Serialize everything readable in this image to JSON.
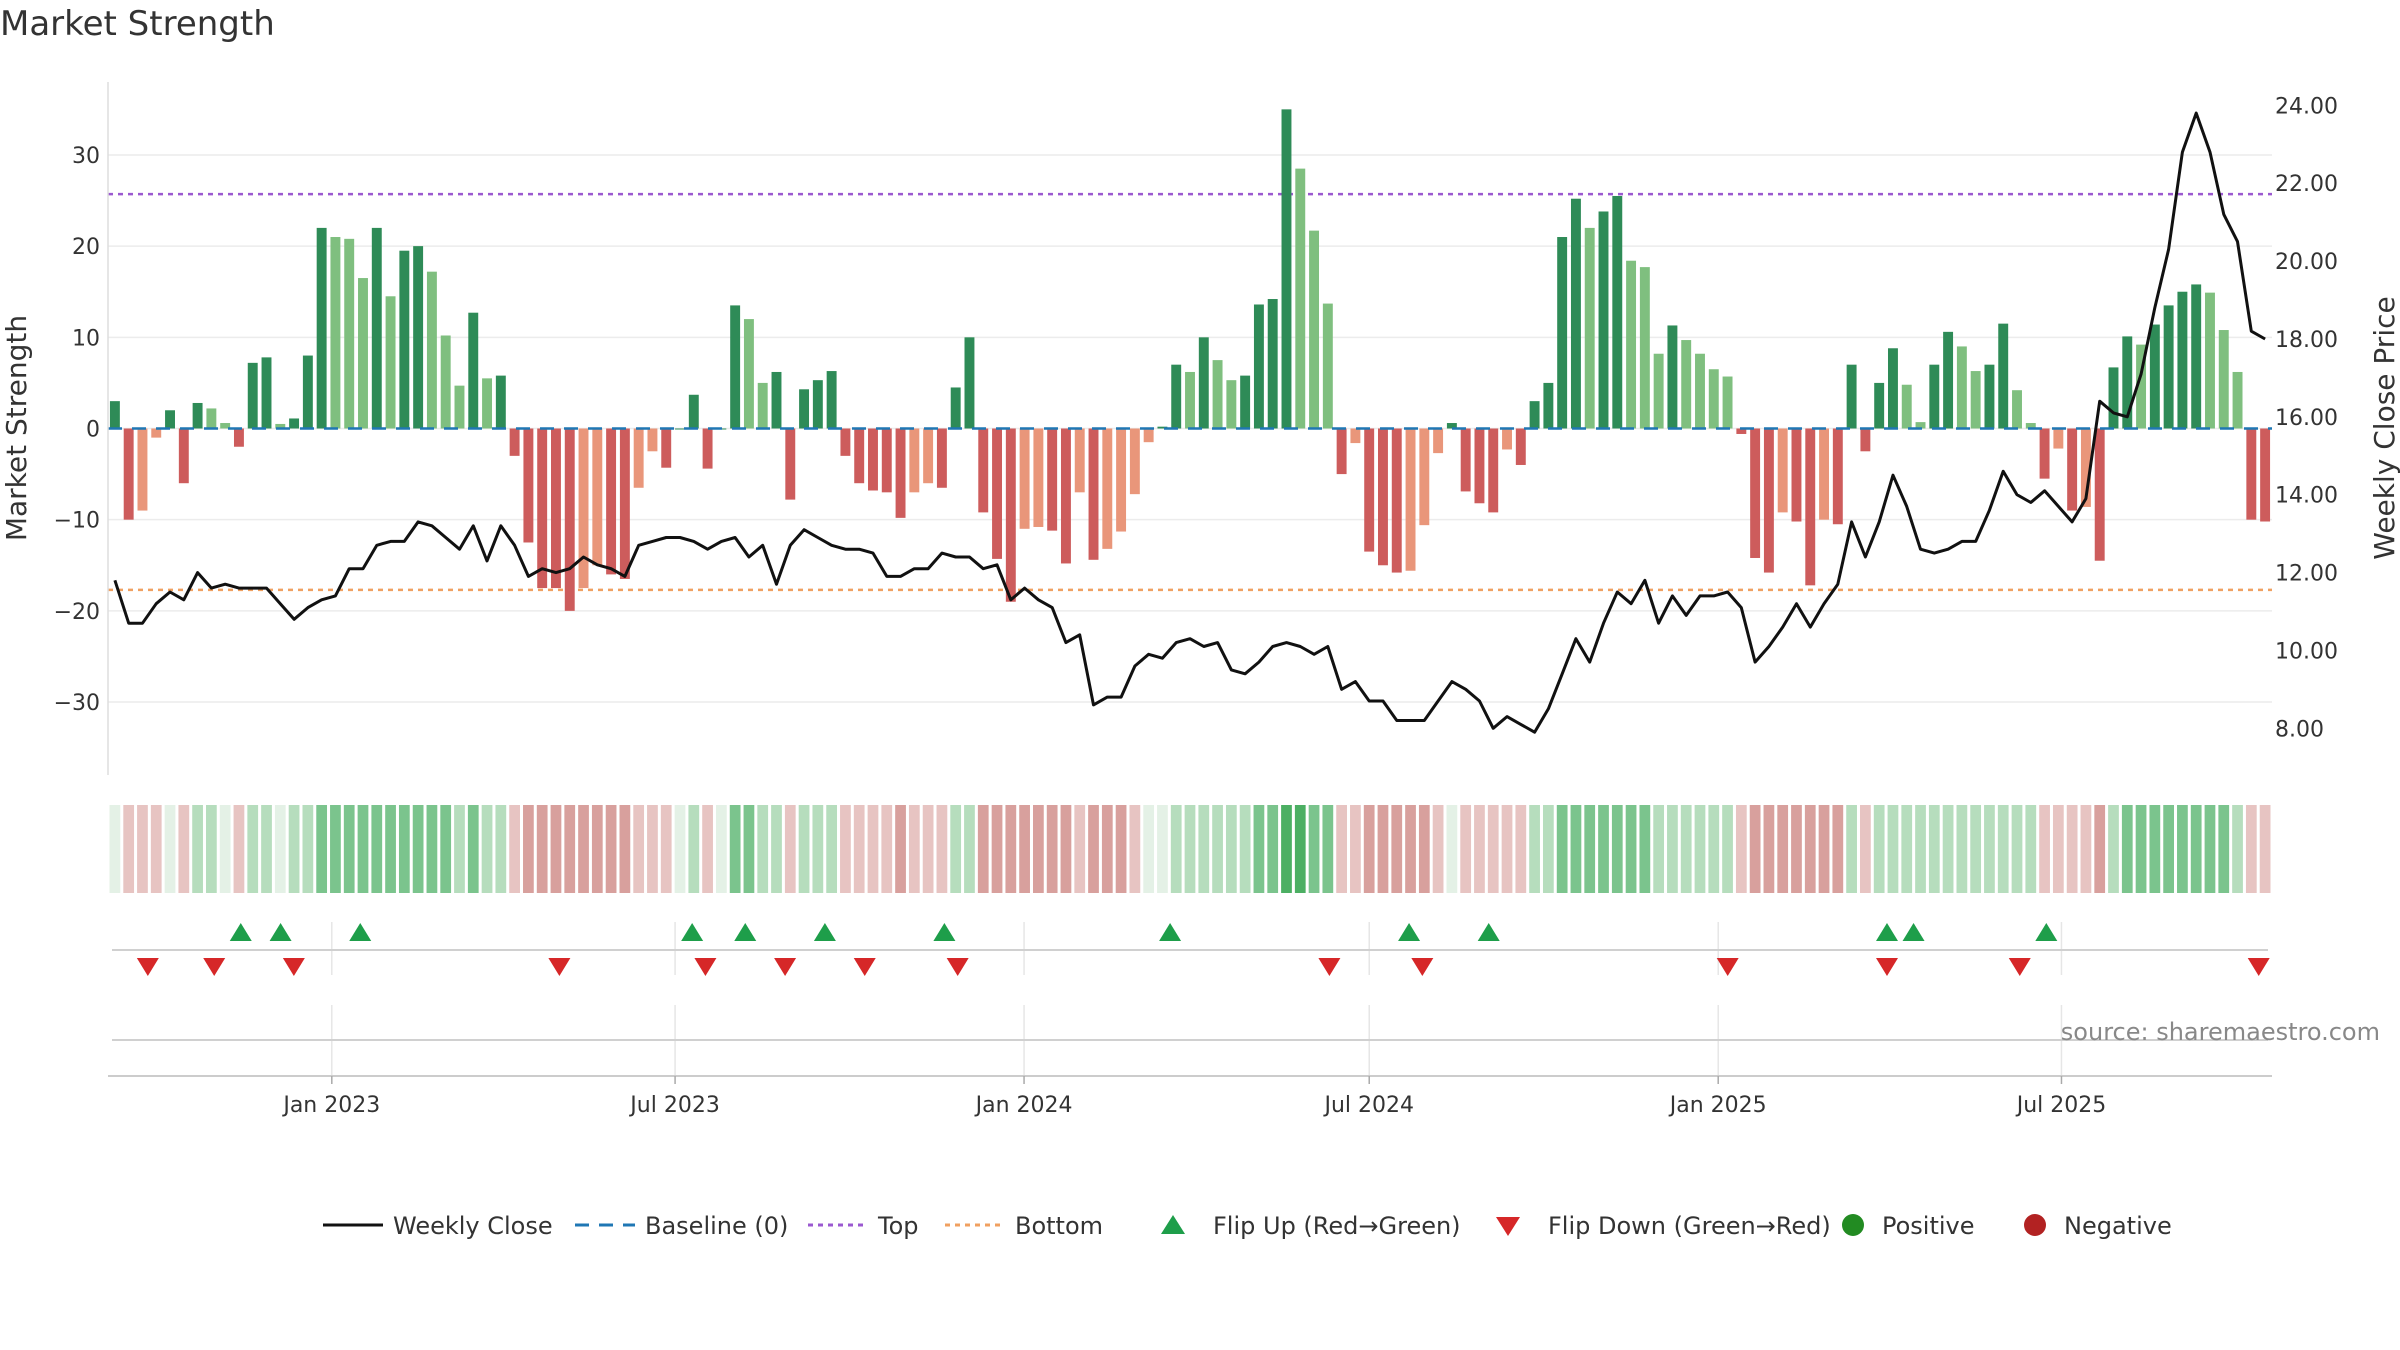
{
  "page": {
    "title": "Market Strength"
  },
  "chart_data": {
    "type": "bar",
    "title": "Market Strength",
    "ylabel": "Market Strength",
    "y2label": "Weekly Close Price",
    "ylim": [
      -38,
      38
    ],
    "y2lim": [
      6.8,
      24.6
    ],
    "y_ticks": [
      30,
      20,
      10,
      0,
      -10,
      -20,
      -30
    ],
    "y2_ticks": [
      24,
      22,
      20,
      18,
      16,
      14,
      12,
      10,
      8
    ],
    "top_line": 25.7,
    "bottom_line": -17.7,
    "baseline": 0,
    "x_start": "2022-09-05",
    "x_end": "2025-10-20",
    "x_ticks": [
      {
        "label": "Jan 2023",
        "date": "2023-01-01"
      },
      {
        "label": "Jul 2023",
        "date": "2023-07-01"
      },
      {
        "label": "Jan 2024",
        "date": "2024-01-01"
      },
      {
        "label": "Jul 2024",
        "date": "2024-07-01"
      },
      {
        "label": "Jan 2025",
        "date": "2025-01-01"
      },
      {
        "label": "Jul 2025",
        "date": "2025-07-01"
      }
    ],
    "strength": [
      3,
      -10,
      -9,
      -1,
      2,
      -6,
      2.8,
      2.2,
      0.6,
      -2,
      7.2,
      7.8,
      0.5,
      1.1,
      8,
      22,
      21,
      20.8,
      16.5,
      22,
      14.5,
      19.5,
      20,
      17.2,
      10.2,
      4.7,
      12.7,
      5.5,
      5.8,
      -3,
      -12.5,
      -17.5,
      -17.5,
      -20,
      -17.5,
      -15,
      -16,
      -16.5,
      -6.5,
      -2.5,
      -4.3,
      0,
      3.7,
      -4.4,
      0,
      13.5,
      12,
      5,
      6.2,
      -7.8,
      4.3,
      5.3,
      6.3,
      -3,
      -6,
      -6.8,
      -7,
      -9.8,
      -7,
      -6,
      -6.5,
      4.5,
      10,
      -9.2,
      -14.3,
      -19,
      -11,
      -10.8,
      -11.2,
      -14.8,
      -7,
      -14.4,
      -13.2,
      -11.3,
      -7.2,
      -1.5,
      0.2,
      7,
      6.2,
      10,
      7.5,
      5.3,
      5.8,
      13.6,
      14.2,
      35,
      28.5,
      21.7,
      13.7,
      -5,
      -1.6,
      -13.5,
      -15,
      -15.8,
      -15.6,
      -10.6,
      -2.7,
      0.6,
      -6.9,
      -8.2,
      -9.2,
      -2.3,
      -4,
      3,
      5,
      21,
      25.2,
      22,
      23.8,
      25.5,
      18.4,
      17.7,
      8.2,
      11.3,
      9.7,
      8.2,
      6.5,
      5.7,
      -0.6,
      -14.2,
      -15.8,
      -9.2,
      -10.2,
      -17.2,
      -10,
      -10.5,
      7,
      -2.5,
      5,
      8.8,
      4.8,
      0.7,
      7,
      10.6,
      9,
      6.3,
      7,
      11.5,
      4.2,
      0.6,
      -5.5,
      -2.2,
      -9,
      -8.6,
      -14.5,
      6.7,
      10.1,
      9.2,
      11.4,
      13.5,
      15,
      15.8,
      14.9,
      10.8,
      6.2,
      -10,
      -10.2
    ],
    "close": [
      11.8,
      10.7,
      10.7,
      11.2,
      11.5,
      11.3,
      12,
      11.6,
      11.7,
      11.6,
      11.6,
      11.6,
      11.2,
      10.8,
      11.1,
      11.3,
      11.4,
      12.1,
      12.1,
      12.7,
      12.8,
      12.8,
      13.3,
      13.2,
      12.9,
      12.6,
      13.2,
      12.3,
      13.2,
      12.7,
      11.9,
      12.1,
      12,
      12.1,
      12.4,
      12.2,
      12.1,
      11.9,
      12.7,
      12.8,
      12.9,
      12.9,
      12.8,
      12.6,
      12.8,
      12.9,
      12.4,
      12.7,
      11.7,
      12.7,
      13.1,
      12.9,
      12.7,
      12.6,
      12.6,
      12.5,
      11.9,
      11.9,
      12.1,
      12.1,
      12.5,
      12.4,
      12.4,
      12.1,
      12.2,
      11.3,
      11.6,
      11.3,
      11.1,
      10.2,
      10.4,
      8.6,
      8.8,
      8.8,
      9.6,
      9.9,
      9.8,
      10.2,
      10.3,
      10.1,
      10.2,
      9.5,
      9.4,
      9.7,
      10.1,
      10.2,
      10.1,
      9.9,
      10.1,
      9.0,
      9.2,
      8.7,
      8.7,
      8.2,
      8.2,
      8.2,
      8.7,
      9.2,
      9.0,
      8.7,
      8.0,
      8.3,
      8.1,
      7.9,
      8.5,
      9.4,
      10.3,
      9.7,
      10.7,
      11.5,
      11.2,
      11.8,
      10.7,
      11.4,
      10.9,
      11.4,
      11.4,
      11.5,
      11.1,
      9.7,
      10.1,
      10.6,
      11.2,
      10.6,
      11.2,
      11.7,
      13.3,
      12.4,
      13.3,
      14.5,
      13.7,
      12.6,
      12.5,
      12.6,
      12.8,
      12.8,
      13.6,
      14.6,
      14.0,
      13.8,
      14.1,
      13.7,
      13.3,
      13.9,
      16.4,
      16.1,
      16.0,
      17.1,
      18.8,
      20.3,
      22.8,
      23.8,
      22.8,
      21.2,
      20.5,
      18.2,
      18.0
    ],
    "heat_states": [
      0,
      -1,
      -1,
      -1,
      0,
      -1,
      1,
      1,
      0,
      -1,
      1,
      1,
      0,
      1,
      1,
      2,
      2,
      2,
      2,
      2,
      2,
      2,
      2,
      2,
      2,
      1,
      2,
      1,
      1,
      -1,
      -2,
      -2,
      -2,
      -2,
      -2,
      -2,
      -2,
      -2,
      -1,
      -1,
      -1,
      0,
      1,
      -1,
      0,
      2,
      2,
      1,
      1,
      -1,
      1,
      1,
      1,
      -1,
      -1,
      -1,
      -1,
      -2,
      -1,
      -1,
      -1,
      1,
      1,
      -2,
      -2,
      -2,
      -2,
      -2,
      -2,
      -2,
      -1,
      -2,
      -2,
      -2,
      -1,
      0,
      0,
      1,
      1,
      1,
      1,
      1,
      1,
      2,
      2,
      3,
      3,
      2,
      2,
      -1,
      -1,
      -2,
      -2,
      -2,
      -2,
      -2,
      -1,
      0,
      -1,
      -1,
      -1,
      -1,
      -1,
      1,
      1,
      2,
      2,
      2,
      2,
      2,
      2,
      2,
      1,
      1,
      1,
      1,
      1,
      1,
      -1,
      -2,
      -2,
      -2,
      -2,
      -2,
      -2,
      -2,
      1,
      -1,
      1,
      1,
      1,
      1,
      1,
      1,
      1,
      1,
      1,
      1,
      1,
      1,
      -1,
      -1,
      -1,
      -1,
      -2,
      1,
      2,
      2,
      2,
      2,
      2,
      2,
      2,
      2,
      1,
      -1,
      -1
    ],
    "flip_up_dates": [
      "2022-11-14",
      "2022-12-05",
      "2023-01-16",
      "2023-07-10",
      "2023-08-07",
      "2023-09-18",
      "2023-11-20",
      "2024-03-18",
      "2024-07-22",
      "2024-09-02",
      "2025-03-31",
      "2025-04-14",
      "2025-06-23"
    ],
    "flip_down_dates": [
      "2022-09-26",
      "2022-10-31",
      "2022-12-12",
      "2023-05-01",
      "2023-07-17",
      "2023-08-28",
      "2023-10-09",
      "2023-11-27",
      "2024-06-10",
      "2024-07-29",
      "2025-01-06",
      "2025-03-31",
      "2025-06-09",
      "2025-10-13"
    ],
    "legend": [
      {
        "label": "Weekly Close",
        "kind": "line"
      },
      {
        "label": "Baseline (0)",
        "kind": "dash"
      },
      {
        "label": "Top",
        "kind": "dot-purple"
      },
      {
        "label": "Bottom",
        "kind": "dot-orange"
      },
      {
        "label": "Flip Up (Red→Green)",
        "kind": "tri-up"
      },
      {
        "label": "Flip Down (Green→Red)",
        "kind": "tri-down"
      },
      {
        "label": "Positive",
        "kind": "circle-green"
      },
      {
        "label": "Negative",
        "kind": "circle-red"
      }
    ],
    "source": "source: sharemaestro.com",
    "colors": {
      "pos_strong": "#2e8b57",
      "pos_weak": "#7fbf7f",
      "neg_strong": "#cd5c5c",
      "neg_weak": "#e9967a",
      "close": "#111111",
      "baseline": "#1f77b4",
      "top": "#9b59d0",
      "bottom": "#f0a060",
      "flip_up": "#1e9e4a",
      "flip_down": "#d62728",
      "positive": "#228b22",
      "negative": "#b22222"
    }
  }
}
